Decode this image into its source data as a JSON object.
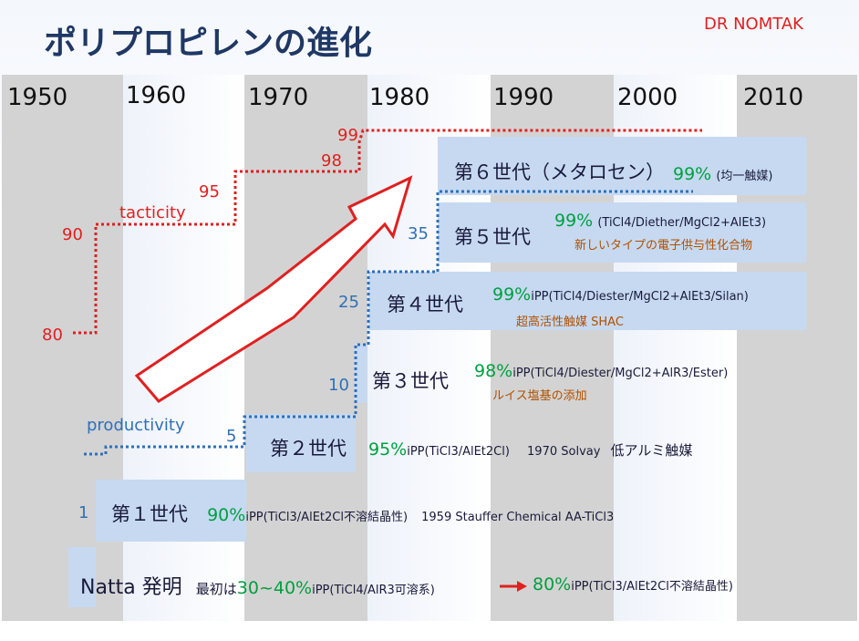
{
  "title": "ポリプロピレンの進化",
  "author": "DR NOMTAK",
  "years": [
    "1950",
    "1960",
    "1970",
    "1980",
    "1990",
    "2000",
    "2010"
  ],
  "axis_labels": {
    "tacticity": "tacticity",
    "productivity": "productivity"
  },
  "tacticity_values": [
    "80",
    "90",
    "95",
    "98",
    "99"
  ],
  "productivity_values": [
    "1",
    "5",
    "10",
    "25",
    "35"
  ],
  "colors": {
    "red": "#e02020",
    "blue": "#2f70b8",
    "green": "#00a040",
    "box": "#c6d9f1",
    "note": "#b05000"
  },
  "generations": [
    {
      "name": "Natta 発明",
      "prefix": "最初は",
      "pct": "30~40%",
      "detail": "iPP(TiCl4/AlR3可溶系)",
      "arrow_pct": "80%",
      "arrow_detail": "iPP(TiCl3/AlEt2Cl不溶結晶性)"
    },
    {
      "name": "第１世代",
      "pct": "90%",
      "detail": "iPP(TiCl3/AlEt2Cl不溶結晶性)",
      "extra": "1959 Stauffer Chemical AA-TiCl3"
    },
    {
      "name": "第２世代",
      "pct": "95%",
      "detail": "iPP(TiCl3/AlEt2Cl)",
      "extra": "1970 Solvay",
      "extra2": "低アルミ触媒"
    },
    {
      "name": "第３世代",
      "pct": "98%",
      "detail": "iPP(TiCl4/Diester/MgCl2+AlR3/Ester)",
      "note": "ルイス塩基の添加"
    },
    {
      "name": "第４世代",
      "pct": "99%",
      "detail": "iPP(TiCl4/Diester/MgCl2+AlEt3/Silan)",
      "note": "超高活性触媒 SHAC"
    },
    {
      "name": "第５世代",
      "pct": "99%",
      "detail": "(TiCl4/Diether/MgCl2+AlEt3)",
      "note": "新しいタイプの電子供与性化合物"
    },
    {
      "name": "第６世代（メタロセン）",
      "pct": "99%",
      "detail": "(均一触媒)"
    }
  ]
}
